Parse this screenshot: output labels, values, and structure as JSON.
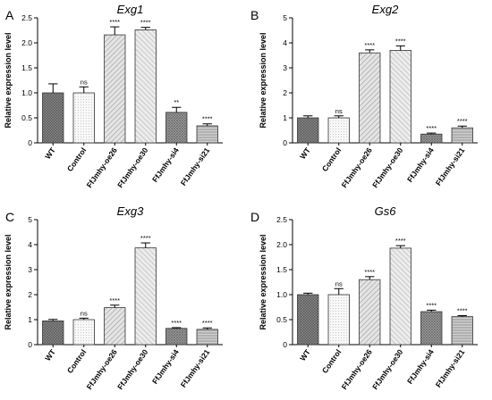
{
  "chart_data": [
    {
      "panel_label": "A",
      "type": "bar",
      "title": "Exg1",
      "ylabel": "Relative expression level",
      "ylim": [
        0,
        2.5
      ],
      "yticks": [
        "0",
        "0.5",
        "1.0",
        "1.5",
        "2.0",
        "2.5"
      ],
      "categories": [
        "WT",
        "Control",
        "FfJmhy-oe26",
        "FfJmhy-oe30",
        "FfJmhy-si4",
        "FfJmhy-si21"
      ],
      "values": [
        1.0,
        1.0,
        2.16,
        2.26,
        0.61,
        0.34
      ],
      "errors": [
        0.18,
        0.12,
        0.16,
        0.05,
        0.1,
        0.04
      ],
      "significance": [
        "",
        "ns",
        "****",
        "****",
        "**",
        "****"
      ]
    },
    {
      "panel_label": "B",
      "type": "bar",
      "title": "Exg2",
      "ylabel": "Relative expression level",
      "ylim": [
        0,
        5
      ],
      "yticks": [
        "0",
        "1",
        "2",
        "3",
        "4",
        "5"
      ],
      "categories": [
        "WT",
        "Control",
        "FfJmhy-oe26",
        "FfJmhy-oe30",
        "FfJmhy-si4",
        "FfJmhy-si21"
      ],
      "values": [
        1.0,
        1.0,
        3.6,
        3.7,
        0.35,
        0.6
      ],
      "errors": [
        0.08,
        0.08,
        0.12,
        0.18,
        0.04,
        0.07
      ],
      "significance": [
        "",
        "ns",
        "****",
        "****",
        "****",
        "****"
      ]
    },
    {
      "panel_label": "C",
      "type": "bar",
      "title": "Exg3",
      "ylabel": "Relative expression level",
      "ylim": [
        0,
        5
      ],
      "yticks": [
        "0",
        "1",
        "2",
        "3",
        "4",
        "5"
      ],
      "categories": [
        "WT",
        "Control",
        "FfJmhy-oe26",
        "FfJmhy-oe30",
        "FfJmhy-si4",
        "FfJmhy-si21"
      ],
      "values": [
        0.95,
        1.0,
        1.48,
        3.87,
        0.65,
        0.61
      ],
      "errors": [
        0.06,
        0.06,
        0.1,
        0.2,
        0.03,
        0.06
      ],
      "significance": [
        "",
        "ns",
        "****",
        "****",
        "****",
        "****"
      ]
    },
    {
      "panel_label": "D",
      "type": "bar",
      "title": "Gs6",
      "ylabel": "Relative expression level",
      "ylim": [
        0,
        2.5
      ],
      "yticks": [
        "0",
        "0.5",
        "1.0",
        "1.5",
        "2.0",
        "2.5"
      ],
      "categories": [
        "WT",
        "Control",
        "FfJmhy-oe26",
        "FfJmhy-oe30",
        "FfJmhy-si4",
        "FfJmhy-si21"
      ],
      "values": [
        1.0,
        1.0,
        1.3,
        1.93,
        0.66,
        0.56
      ],
      "errors": [
        0.03,
        0.12,
        0.06,
        0.05,
        0.03,
        0.02
      ],
      "significance": [
        "",
        "ns",
        "****",
        "****",
        "****",
        "****"
      ]
    }
  ],
  "colors": {
    "axis": "#000000",
    "bar_fills": [
      "#7a7a7a",
      "#f0f0f0",
      "#cfcfcf",
      "#d6d6d6",
      "#9c9c9c",
      "#bdbdbd"
    ]
  }
}
